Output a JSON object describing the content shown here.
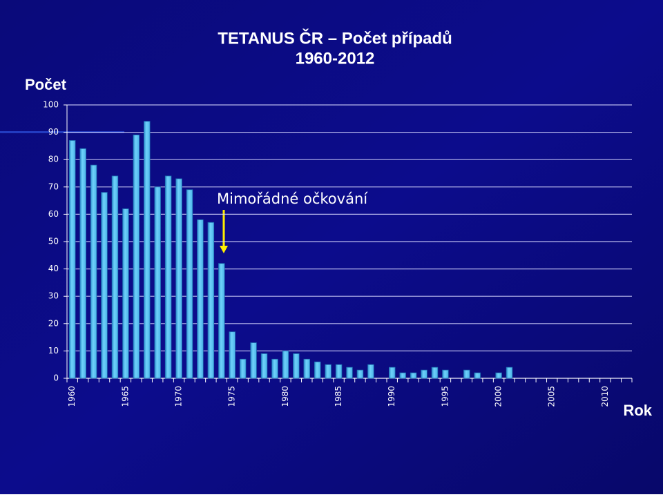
{
  "chart_data": {
    "type": "bar",
    "title": "TETANUS ČR – Počet případů",
    "subtitle": "1960-2012",
    "y_label": "Počet",
    "x_label": "Rok",
    "annotation": "Mimořádné očkování",
    "categories": [
      "1960",
      null,
      null,
      null,
      null,
      "1965",
      null,
      null,
      null,
      null,
      "1970",
      null,
      null,
      null,
      null,
      "1975",
      null,
      null,
      null,
      null,
      "1980",
      null,
      null,
      null,
      null,
      "1985",
      null,
      null,
      null,
      null,
      "1990",
      null,
      null,
      null,
      null,
      "1995",
      null,
      null,
      null,
      null,
      "2000",
      null,
      null,
      null,
      null,
      "2005",
      null,
      null,
      null,
      null,
      "2010",
      null,
      null
    ],
    "values": [
      87,
      84,
      78,
      68,
      74,
      62,
      89,
      94,
      70,
      74,
      73,
      69,
      58,
      57,
      42,
      17,
      7,
      13,
      9,
      7,
      10,
      9,
      7,
      6,
      5,
      5,
      4,
      3,
      5,
      0,
      4,
      2,
      2,
      3,
      4,
      3,
      0,
      3,
      2,
      0,
      2,
      4,
      0,
      0,
      0,
      0,
      0,
      0,
      0,
      0,
      0,
      0,
      0
    ],
    "color": "#5cc8f4",
    "ylim": [
      0,
      100
    ],
    "yticks": [
      0,
      10,
      20,
      30,
      40,
      50,
      60,
      70,
      80,
      90,
      100
    ],
    "grid": true
  }
}
